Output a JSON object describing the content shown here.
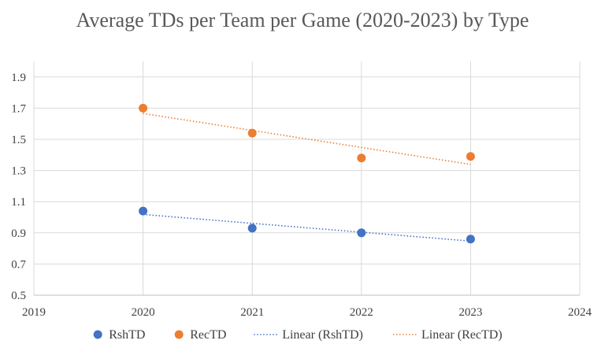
{
  "chart_data": {
    "type": "scatter",
    "title": "Average TDs per Team per Game (2020-2023) by Type",
    "xlabel": "",
    "ylabel": "",
    "xlim": [
      2019,
      2024
    ],
    "ylim": [
      0.5,
      2.0
    ],
    "x_ticks": [
      "2019",
      "2020",
      "2021",
      "2022",
      "2023",
      "2024"
    ],
    "y_ticks": [
      "0.5",
      "0.7",
      "0.9",
      "1.1",
      "1.3",
      "1.5",
      "1.7",
      "1.9"
    ],
    "grid": true,
    "legend_position": "bottom",
    "x": [
      2020,
      2021,
      2022,
      2023
    ],
    "series": [
      {
        "name": "RshTD",
        "values": [
          1.04,
          0.93,
          0.9,
          0.86
        ],
        "color": "#4472c4"
      },
      {
        "name": "RecTD",
        "values": [
          1.7,
          1.54,
          1.38,
          1.39
        ],
        "color": "#ed7d31"
      }
    ],
    "trendlines": [
      {
        "name": "Linear (RshTD)",
        "series": "RshTD",
        "style": "dotted",
        "color": "#4472c4"
      },
      {
        "name": "Linear (RecTD)",
        "series": "RecTD",
        "style": "dotted",
        "color": "#ed7d31"
      }
    ]
  }
}
